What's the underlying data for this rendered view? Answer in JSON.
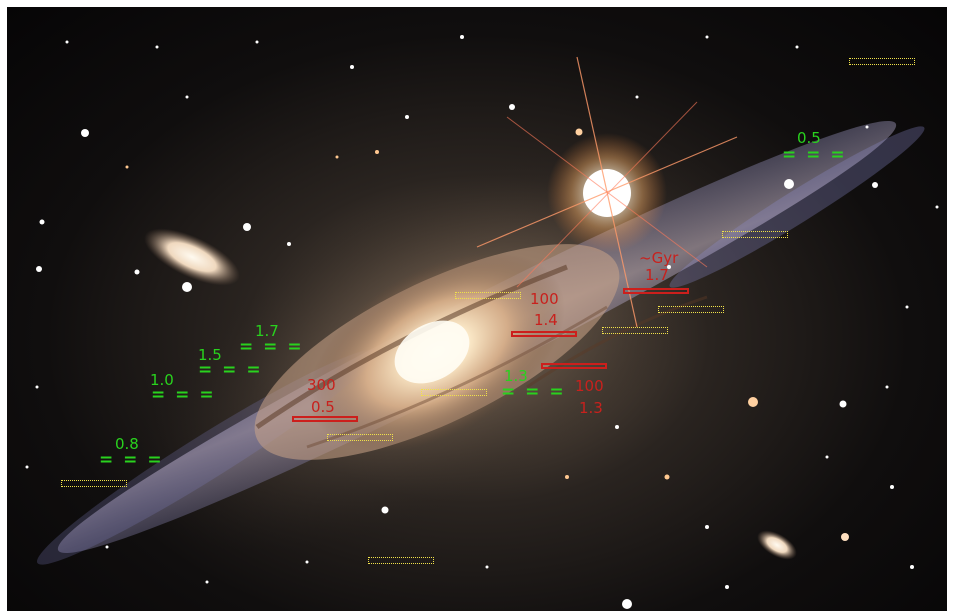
{
  "green_labels": {
    "g05": "0.5",
    "g08": "0.8",
    "g10": "1.0",
    "g13": "1.3",
    "g15": "1.5",
    "g17": "1.7",
    "eq3": "= = =",
    "eq1": "="
  },
  "red_labels": {
    "gyr": "~Gyr",
    "gyr_val": "1.7",
    "r100a": "100",
    "r14": "1.4",
    "r300": "300",
    "r05": "0.5",
    "r100b": "100",
    "r13": "1.3"
  },
  "colors": {
    "green_label": "#29d21e",
    "red_label": "#c8211d",
    "yellow_marker": "#f1e24a"
  }
}
